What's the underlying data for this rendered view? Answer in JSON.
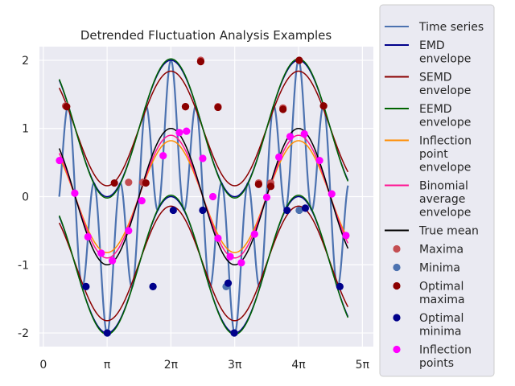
{
  "chart_data": {
    "type": "line",
    "title": "Detrended Fluctuation Analysis Examples",
    "xlabel": "",
    "ylabel": "",
    "xlim": [
      -0.19,
      16.25
    ],
    "ylim": [
      -2.2,
      2.2
    ],
    "x_ticks": [
      {
        "value": 0,
        "label": "0"
      },
      {
        "value": 3.14159,
        "label": "π"
      },
      {
        "value": 6.28319,
        "label": "2π"
      },
      {
        "value": 9.42478,
        "label": "3π"
      },
      {
        "value": 12.56637,
        "label": "4π"
      },
      {
        "value": 15.70796,
        "label": "5π"
      }
    ],
    "y_ticks": [
      {
        "value": 2,
        "label": "2"
      },
      {
        "value": 1,
        "label": "1"
      },
      {
        "value": 0,
        "label": "0"
      },
      {
        "value": -1,
        "label": "-1"
      },
      {
        "value": -2,
        "label": "-2"
      }
    ],
    "grid": true,
    "legend_position": "outside-right",
    "x_range": [
      0.785,
      15.0
    ],
    "background": "#eaeaf2",
    "series": [
      {
        "name": "Time series",
        "kind": "line",
        "color": "#4c72b0",
        "width": 2.2
      },
      {
        "name": "EMD envelope",
        "kind": "line",
        "color": "#00008b",
        "width": 1.5
      },
      {
        "name": "SEMD envelope",
        "kind": "line",
        "color": "#8b0000",
        "width": 1.5
      },
      {
        "name": "EEMD envelope",
        "kind": "line",
        "color": "#006400",
        "width": 1.5
      },
      {
        "name": "Inflection point envelope",
        "kind": "line",
        "color": "#ff8c00",
        "width": 1.5
      },
      {
        "name": "Binomial average envelope",
        "kind": "line",
        "color": "#ff1493",
        "width": 1.5
      },
      {
        "name": "True mean",
        "kind": "line",
        "color": "#000000",
        "width": 1.5
      },
      {
        "name": "Maxima",
        "kind": "marker",
        "color": "#c44e52"
      },
      {
        "name": "Minima",
        "kind": "marker",
        "color": "#4c72b0"
      },
      {
        "name": "Optimal maxima",
        "kind": "marker",
        "color": "#8b0000"
      },
      {
        "name": "Optimal minima",
        "kind": "marker",
        "color": "#00008b"
      },
      {
        "name": "Inflection points",
        "kind": "marker",
        "color": "#ff00ff"
      }
    ],
    "maxima": [
      [
        1.1,
        1.33
      ],
      [
        4.2,
        0.21
      ],
      [
        4.9,
        0.21
      ],
      [
        7.75,
        2.0
      ],
      [
        7.0,
        1.32
      ],
      [
        8.6,
        1.32
      ],
      [
        10.6,
        0.2
      ],
      [
        11.2,
        0.2
      ],
      [
        11.8,
        1.3
      ],
      [
        13.8,
        1.33
      ]
    ],
    "minima": [
      [
        2.1,
        -1.32
      ],
      [
        3.15,
        -2.0
      ],
      [
        5.4,
        -1.32
      ],
      [
        9.4,
        -2.0
      ],
      [
        9.0,
        -1.32
      ],
      [
        12.6,
        -0.2
      ]
    ],
    "optimal_maxima": [
      [
        1.15,
        1.32
      ],
      [
        3.5,
        0.2
      ],
      [
        5.05,
        0.2
      ],
      [
        7.75,
        1.98
      ],
      [
        7.0,
        1.32
      ],
      [
        8.6,
        1.31
      ],
      [
        10.6,
        0.18
      ],
      [
        11.2,
        0.15
      ],
      [
        11.8,
        1.28
      ],
      [
        12.6,
        2.0
      ],
      [
        13.8,
        1.33
      ]
    ],
    "optimal_minima": [
      [
        2.1,
        -1.32
      ],
      [
        3.15,
        -2.0
      ],
      [
        5.4,
        -1.32
      ],
      [
        6.4,
        -0.2
      ],
      [
        7.85,
        -0.2
      ],
      [
        9.4,
        -2.0
      ],
      [
        9.1,
        -1.27
      ],
      [
        12.0,
        -0.2
      ],
      [
        12.9,
        -0.17
      ],
      [
        14.6,
        -1.32
      ]
    ],
    "inflection_points": [
      [
        0.8,
        0.53
      ],
      [
        1.55,
        0.05
      ],
      [
        2.2,
        -0.59
      ],
      [
        2.85,
        -0.83
      ],
      [
        3.4,
        -0.94
      ],
      [
        4.2,
        -0.5
      ],
      [
        4.85,
        -0.06
      ],
      [
        5.9,
        0.6
      ],
      [
        6.7,
        0.94
      ],
      [
        7.05,
        0.96
      ],
      [
        7.85,
        0.56
      ],
      [
        8.35,
        0.0
      ],
      [
        8.6,
        -0.61
      ],
      [
        9.2,
        -0.88
      ],
      [
        9.75,
        -0.97
      ],
      [
        10.4,
        -0.55
      ],
      [
        11.0,
        -0.01
      ],
      [
        11.6,
        0.58
      ],
      [
        12.15,
        0.88
      ],
      [
        12.85,
        0.92
      ],
      [
        13.6,
        0.53
      ],
      [
        14.2,
        0.04
      ],
      [
        14.9,
        -0.57
      ]
    ]
  },
  "legend": {
    "items": [
      {
        "label": "Time series",
        "kind": "line",
        "color": "#4c72b0"
      },
      {
        "label": "EMD envelope",
        "kind": "line",
        "color": "#00008b"
      },
      {
        "label": "SEMD envelope",
        "kind": "line",
        "color": "#8b0000"
      },
      {
        "label": "EEMD envelope",
        "kind": "line",
        "color": "#006400"
      },
      {
        "label": "Inflection point envelope",
        "kind": "line",
        "color": "#ff8c00"
      },
      {
        "label": "Binomial average envelope",
        "kind": "line",
        "color": "#ff1493"
      },
      {
        "label": "True mean",
        "kind": "line",
        "color": "#000000"
      },
      {
        "label": "Maxima",
        "kind": "marker",
        "color": "#c44e52"
      },
      {
        "label": "Minima",
        "kind": "marker",
        "color": "#4c72b0"
      },
      {
        "label": "Optimal maxima",
        "kind": "marker",
        "color": "#8b0000"
      },
      {
        "label": "Optimal minima",
        "kind": "marker",
        "color": "#00008b"
      },
      {
        "label": "Inflection points",
        "kind": "marker",
        "color": "#ff00ff"
      }
    ]
  }
}
